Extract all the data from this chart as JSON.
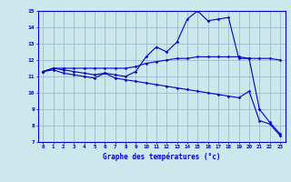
{
  "xlabel": "Graphe des températures (°c)",
  "background_color": "#cce8ec",
  "line_color": "#0000cc",
  "grid_color": "#99bbcc",
  "x_values": [
    0,
    1,
    2,
    3,
    4,
    5,
    6,
    7,
    8,
    9,
    10,
    11,
    12,
    13,
    14,
    15,
    16,
    17,
    18,
    19,
    20,
    21,
    22,
    23
  ],
  "line1": [
    11.3,
    11.4,
    11.2,
    11.1,
    11.0,
    10.9,
    11.2,
    10.9,
    10.8,
    10.7,
    10.6,
    10.5,
    10.4,
    10.3,
    10.2,
    10.1,
    10.0,
    9.9,
    9.8,
    9.7,
    10.1,
    8.3,
    8.1,
    7.4
  ],
  "line2": [
    11.3,
    11.5,
    11.4,
    11.3,
    11.2,
    11.1,
    11.2,
    11.1,
    11.0,
    11.3,
    12.2,
    12.8,
    12.5,
    13.1,
    14.5,
    15.0,
    14.4,
    14.5,
    14.6,
    12.1,
    12.1,
    9.0,
    8.2,
    7.5
  ],
  "line3": [
    11.3,
    11.5,
    11.5,
    11.5,
    11.5,
    11.5,
    11.5,
    11.5,
    11.5,
    11.6,
    11.8,
    11.9,
    12.0,
    12.1,
    12.1,
    12.2,
    12.2,
    12.2,
    12.2,
    12.2,
    12.1,
    12.1,
    12.1,
    12.0
  ],
  "xlim": [
    -0.5,
    23.5
  ],
  "ylim": [
    7,
    15
  ],
  "yticks": [
    7,
    8,
    9,
    10,
    11,
    12,
    13,
    14,
    15
  ],
  "xticks": [
    0,
    1,
    2,
    3,
    4,
    5,
    6,
    7,
    8,
    9,
    10,
    11,
    12,
    13,
    14,
    15,
    16,
    17,
    18,
    19,
    20,
    21,
    22,
    23
  ]
}
